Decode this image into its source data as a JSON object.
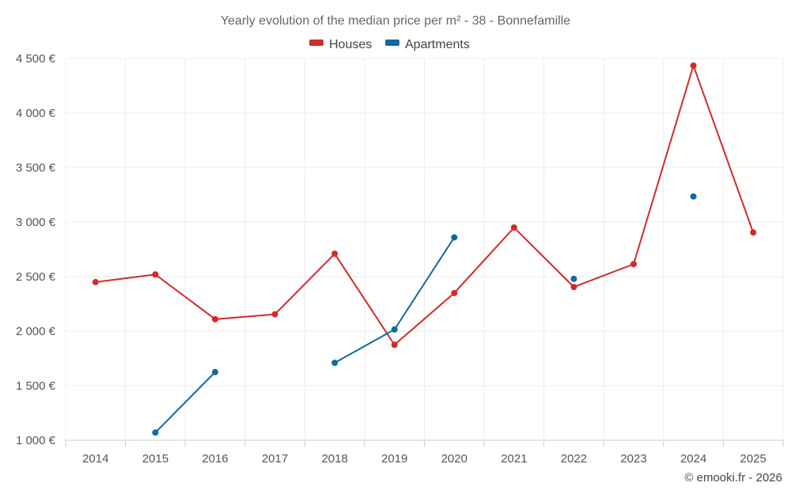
{
  "chart_data": {
    "type": "line",
    "title": "Yearly evolution of the median price per m² - 38 - Bonnefamille",
    "categories": [
      "2014",
      "2015",
      "2016",
      "2017",
      "2018",
      "2019",
      "2020",
      "2021",
      "2022",
      "2023",
      "2024",
      "2025"
    ],
    "y_ticks": [
      1000,
      1500,
      2000,
      2500,
      3000,
      3500,
      4000,
      4500
    ],
    "y_tick_labels": [
      "1 000 €",
      "1 500 €",
      "2 000 €",
      "2 500 €",
      "3 000 €",
      "3 500 €",
      "4 000 €",
      "4 500 €"
    ],
    "ylim": [
      1000,
      4500
    ],
    "legend_position": "top-center",
    "series": [
      {
        "name": "Houses",
        "color": "#d32a2a",
        "values": [
          2450,
          2520,
          2110,
          2155,
          2710,
          1875,
          2350,
          2950,
          2405,
          2615,
          4435,
          2905
        ]
      },
      {
        "name": "Apartments",
        "color": "#0f6b9e",
        "values": [
          null,
          1070,
          1625,
          null,
          1710,
          2015,
          2860,
          null,
          2480,
          null,
          3235,
          null
        ]
      }
    ]
  },
  "credit": "© emooki.fr - 2026"
}
